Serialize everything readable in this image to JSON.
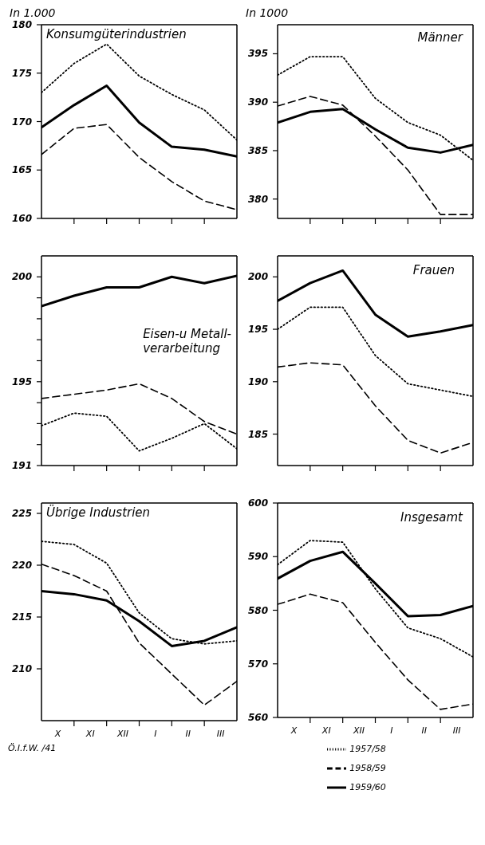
{
  "chart_data": [
    {
      "type": "line",
      "title": "Konsumgüterindustrien",
      "ylabel": "In 1.000",
      "categories": [
        null,
        null,
        null,
        null,
        null,
        null,
        null,
        null,
        null,
        null,
        null,
        null,
        null
      ],
      "ylim": [
        160,
        180
      ],
      "yticks": [
        160,
        165,
        170,
        175,
        180
      ],
      "tick_labels": "y",
      "marker": "none",
      "series": [
        {
          "color": "#000000",
          "line_style": "dotted",
          "values": [
            173.0,
            null,
            176.0,
            null,
            178.0,
            null,
            174.7,
            null,
            172.8,
            null,
            171.2,
            null,
            168.1
          ]
        },
        {
          "color": "#000000",
          "line_style": "dashed",
          "values": [
            166.6,
            null,
            169.3,
            null,
            169.7,
            null,
            166.3,
            null,
            163.8,
            null,
            161.8,
            null,
            160.9
          ]
        },
        {
          "color": "#000000",
          "line_style": "solid",
          "values": [
            169.4,
            null,
            171.7,
            null,
            173.7,
            null,
            169.9,
            null,
            167.4,
            null,
            167.1,
            null,
            166.4
          ]
        }
      ]
    },
    {
      "type": "line",
      "title": "Männer",
      "ylabel": "In 1000",
      "categories": [
        null,
        null,
        null,
        null,
        null,
        null,
        null,
        null,
        null,
        null,
        null,
        null,
        null
      ],
      "ylim": [
        378,
        398
      ],
      "yticks": [
        380,
        385,
        390,
        395
      ],
      "tick_labels": "y",
      "marker": "none",
      "series": [
        {
          "color": "#000000",
          "line_style": "dotted",
          "values": [
            392.8,
            null,
            394.7,
            null,
            394.7,
            null,
            390.4,
            null,
            387.9,
            null,
            386.6,
            null,
            384.0
          ]
        },
        {
          "color": "#000000",
          "line_style": "dashed",
          "values": [
            389.6,
            null,
            390.6,
            null,
            389.7,
            null,
            386.5,
            null,
            383.0,
            null,
            378.4,
            null,
            378.4
          ]
        },
        {
          "color": "#000000",
          "line_style": "solid",
          "values": [
            387.9,
            null,
            389.0,
            null,
            389.3,
            null,
            387.2,
            null,
            385.3,
            null,
            384.8,
            null,
            385.6
          ]
        }
      ]
    },
    {
      "type": "line",
      "title": "Eisen-u Metall-\nverarbeitung",
      "categories": [
        null,
        null,
        null,
        null,
        null,
        null,
        null,
        null,
        null,
        null,
        null,
        null,
        null
      ],
      "ylim": [
        191,
        201
      ],
      "yticks": [
        191,
        {
          "value": 192,
          "label": null
        },
        {
          "value": 193,
          "label": null
        },
        {
          "value": 194,
          "label": null
        },
        195,
        {
          "value": 196,
          "label": null
        },
        {
          "value": 197,
          "label": null
        },
        {
          "value": 198,
          "label": null
        },
        {
          "value": 199,
          "label": null
        },
        200
      ],
      "tick_labels": "y",
      "marker": "none",
      "series": [
        {
          "color": "#000000",
          "line_style": "dotted",
          "values": [
            192.9,
            null,
            193.5,
            null,
            193.35,
            null,
            191.7,
            null,
            192.3,
            null,
            193.0,
            null,
            191.8
          ]
        },
        {
          "color": "#000000",
          "line_style": "dashed",
          "values": [
            194.2,
            null,
            194.4,
            null,
            194.6,
            null,
            194.9,
            null,
            194.2,
            null,
            193.1,
            null,
            192.5
          ]
        },
        {
          "color": "#000000",
          "line_style": "solid",
          "values": [
            198.6,
            null,
            199.1,
            null,
            199.5,
            null,
            199.5,
            null,
            200.0,
            null,
            199.7,
            null,
            200.05
          ]
        }
      ]
    },
    {
      "type": "line",
      "title": "Frauen",
      "categories": [
        null,
        null,
        null,
        null,
        null,
        null,
        null,
        null,
        null,
        null,
        null,
        null,
        null
      ],
      "ylim": [
        182,
        202
      ],
      "yticks": [
        185,
        190,
        195,
        200
      ],
      "tick_labels": "y",
      "marker": "none",
      "series": [
        {
          "color": "#000000",
          "line_style": "dotted",
          "values": [
            195.0,
            null,
            197.1,
            null,
            197.1,
            null,
            192.5,
            null,
            189.8,
            null,
            189.2,
            null,
            188.6
          ]
        },
        {
          "color": "#000000",
          "line_style": "dashed",
          "values": [
            191.4,
            null,
            191.8,
            null,
            191.6,
            null,
            187.7,
            null,
            184.4,
            null,
            183.2,
            null,
            184.2
          ]
        },
        {
          "color": "#000000",
          "line_style": "solid",
          "values": [
            197.7,
            null,
            199.4,
            null,
            200.6,
            null,
            196.4,
            null,
            194.3,
            null,
            194.8,
            null,
            195.4
          ]
        }
      ]
    },
    {
      "type": "line",
      "title": "Übrige Industrien",
      "categories": [
        null,
        "X",
        null,
        "XI",
        null,
        "XII",
        null,
        "I",
        null,
        "II",
        null,
        "III",
        null
      ],
      "ylim": [
        205,
        226
      ],
      "yticks": [
        210,
        215,
        220,
        225
      ],
      "marker": "none",
      "annotations": [
        "Ö.I.f.W. /41"
      ],
      "series": [
        {
          "color": "#000000",
          "line_style": "dotted",
          "values": [
            222.3,
            null,
            222.0,
            null,
            220.2,
            null,
            215.4,
            null,
            212.9,
            null,
            212.4,
            null,
            212.7
          ]
        },
        {
          "color": "#000000",
          "line_style": "dashed",
          "values": [
            220.1,
            null,
            219.0,
            null,
            217.5,
            null,
            212.5,
            null,
            209.5,
            null,
            206.5,
            null,
            208.8
          ]
        },
        {
          "color": "#000000",
          "line_style": "solid",
          "values": [
            217.5,
            null,
            217.2,
            null,
            216.6,
            null,
            214.6,
            null,
            212.2,
            null,
            212.7,
            null,
            214.0
          ]
        }
      ]
    },
    {
      "type": "line",
      "title": "Insgesamt",
      "categories": [
        null,
        "X",
        null,
        "XI",
        null,
        "XII",
        null,
        "I",
        null,
        "II",
        null,
        "III",
        null
      ],
      "ylim": [
        560,
        600
      ],
      "yticks": [
        560,
        570,
        580,
        590,
        600
      ],
      "marker": "none",
      "legend": "bottom",
      "series": [
        {
          "name": "1957/58",
          "color": "#000000",
          "line_style": "dotted",
          "values": [
            588.5,
            null,
            593.0,
            null,
            592.7,
            null,
            584.0,
            null,
            576.7,
            null,
            574.7,
            null,
            571.3
          ]
        },
        {
          "name": "1958/59",
          "color": "#000000",
          "line_style": "dashed",
          "values": [
            581.1,
            null,
            583.0,
            null,
            581.4,
            null,
            574.0,
            null,
            567.0,
            null,
            561.5,
            null,
            562.5
          ]
        },
        {
          "name": "1959/60",
          "color": "#000000",
          "line_style": "solid",
          "values": [
            585.9,
            null,
            589.2,
            null,
            590.9,
            null,
            585.0,
            null,
            578.9,
            null,
            579.1,
            null,
            580.8
          ]
        }
      ]
    }
  ]
}
